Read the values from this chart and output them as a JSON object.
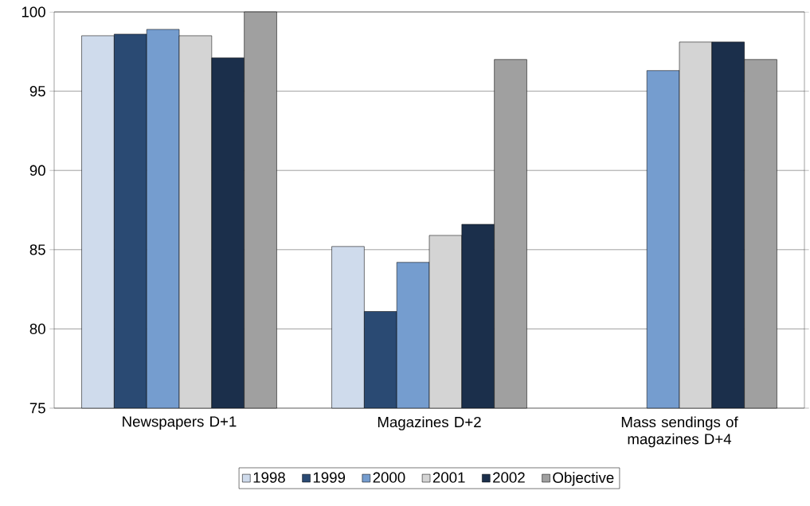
{
  "chart_data": {
    "type": "bar",
    "categories": [
      "Newspapers D+1",
      "Magazines D+2",
      "Mass sendings of magazines D+4"
    ],
    "series": [
      {
        "name": "1998",
        "color": "#cfdbec",
        "values": [
          98.5,
          85.2,
          null
        ]
      },
      {
        "name": "1999",
        "color": "#2a4a73",
        "values": [
          98.6,
          81.1,
          null
        ]
      },
      {
        "name": "2000",
        "color": "#759dcf",
        "values": [
          98.9,
          84.2,
          96.3
        ]
      },
      {
        "name": "2001",
        "color": "#d4d4d4",
        "values": [
          98.5,
          85.9,
          98.1
        ]
      },
      {
        "name": "2002",
        "color": "#1b2f4b",
        "values": [
          97.1,
          86.6,
          98.1
        ]
      },
      {
        "name": "Objective",
        "color": "#a0a0a0",
        "values": [
          100,
          97,
          97
        ]
      }
    ],
    "ylim": [
      75,
      100
    ],
    "yticks": [
      75,
      80,
      85,
      90,
      95,
      100
    ],
    "grid": "y",
    "legend": "bottom"
  }
}
